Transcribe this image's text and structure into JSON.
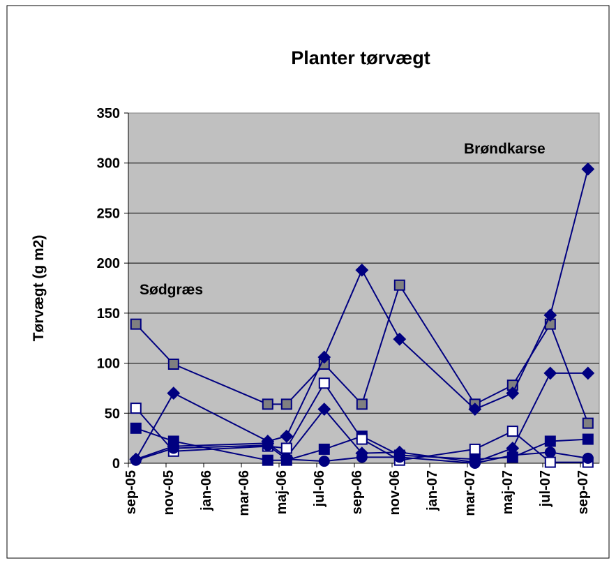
{
  "chart_data": {
    "type": "line",
    "title": "Planter tørvægt",
    "y_label": "Tørvægt (g m2)",
    "annotations": [
      "Sødgræs",
      "Brøndkarse"
    ],
    "x": [
      "2005-09",
      "2005-11",
      "2006-04",
      "2006-05",
      "2006-07",
      "2006-09",
      "2006-11",
      "2007-03",
      "2007-05",
      "2007-07",
      "2007-09"
    ],
    "xlim": [
      "2005-09",
      "2007-10"
    ],
    "xticks": [
      {
        "value": "2005-09",
        "label": "sep-05"
      },
      {
        "value": "2005-11",
        "label": "nov-05"
      },
      {
        "value": "2006-01",
        "label": "jan-06"
      },
      {
        "value": "2006-03",
        "label": "mar-06"
      },
      {
        "value": "2006-05",
        "label": "maj-06"
      },
      {
        "value": "2006-07",
        "label": "jul-06"
      },
      {
        "value": "2006-09",
        "label": "sep-06"
      },
      {
        "value": "2006-11",
        "label": "nov-06"
      },
      {
        "value": "2007-01",
        "label": "jan-07"
      },
      {
        "value": "2007-03",
        "label": "mar-07"
      },
      {
        "value": "2007-05",
        "label": "maj-07"
      },
      {
        "value": "2007-07",
        "label": "jul-07"
      },
      {
        "value": "2007-09",
        "label": "sep-07"
      }
    ],
    "ylim": [
      0,
      350
    ],
    "yticks": [
      0,
      50,
      100,
      150,
      200,
      250,
      300,
      350
    ],
    "grid": true,
    "line_color": "#000080",
    "series": [
      {
        "marker": "square",
        "color": "#808080",
        "values": [
          139,
          99,
          59,
          59,
          99,
          59,
          178,
          59,
          78,
          139,
          40
        ]
      },
      {
        "marker": "diamond",
        "color": "#000080",
        "values": [
          4,
          70,
          22,
          27,
          106,
          193,
          124,
          54,
          70,
          148,
          294
        ]
      },
      {
        "marker": "diamond",
        "color": "#000080",
        "values": [
          4,
          17,
          20,
          6,
          54,
          10,
          11,
          1,
          15,
          90,
          90
        ]
      },
      {
        "marker": "square",
        "color": "#000080",
        "values": [
          35,
          22,
          3,
          3,
          14,
          27,
          8,
          4,
          6,
          22,
          24
        ]
      },
      {
        "marker": "square",
        "color": "#ffffff",
        "values": [
          55,
          12,
          17,
          15,
          80,
          24,
          3,
          14,
          32,
          1,
          1
        ]
      },
      {
        "marker": "circle",
        "color": "#000080",
        "values": [
          3,
          15,
          18,
          4,
          2,
          6,
          6,
          0,
          8,
          11,
          5
        ]
      }
    ]
  }
}
